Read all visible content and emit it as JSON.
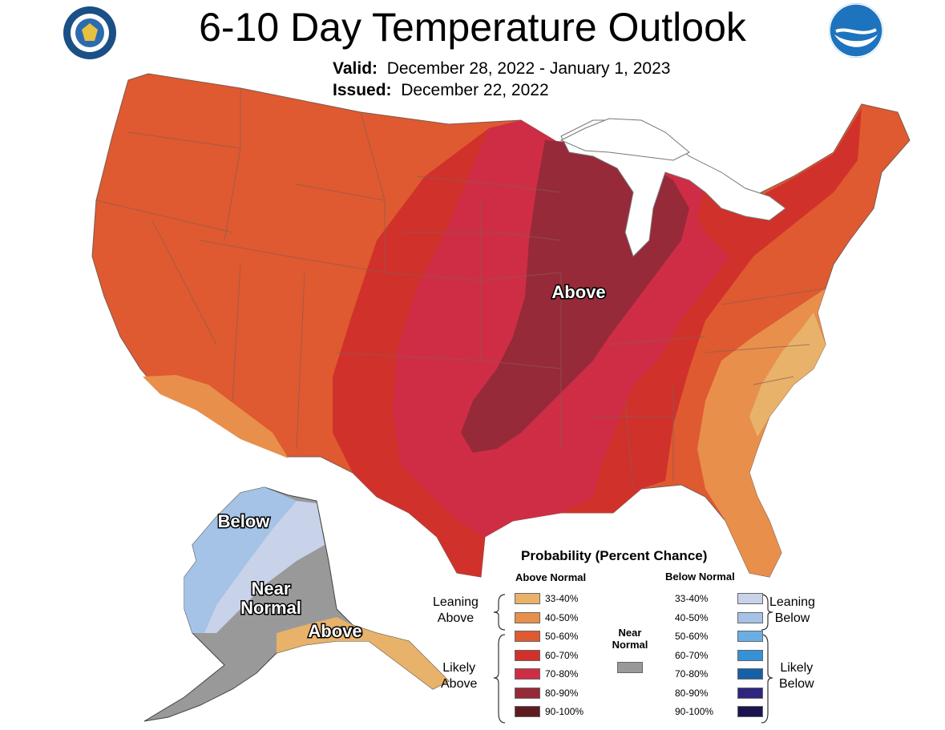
{
  "title": "6-10 Day Temperature Outlook",
  "valid_label": "Valid:",
  "valid_value": "December 28, 2022 - January 1, 2023",
  "issued_label": "Issued:",
  "issued_value": "December 22, 2022",
  "logos": {
    "left": "department-of-commerce-seal",
    "right": "noaa-logo"
  },
  "map_labels": {
    "conus_above": "Above",
    "alaska_below": "Below",
    "alaska_near_line1": "Near",
    "alaska_near_line2": "Normal",
    "alaska_above": "Above"
  },
  "legend": {
    "title": "Probability (Percent Chance)",
    "above_header": "Above Normal",
    "below_header": "Below Normal",
    "near_label_line1": "Near",
    "near_label_line2": "Normal",
    "near_color": "#999999",
    "leaning_above_line1": "Leaning",
    "leaning_above_line2": "Above",
    "likely_above_line1": "Likely",
    "likely_above_line2": "Above",
    "leaning_below_line1": "Leaning",
    "leaning_below_line2": "Below",
    "likely_below_line1": "Likely",
    "likely_below_line2": "Below",
    "above": [
      {
        "label": "33-40%",
        "color": "#e8b26a"
      },
      {
        "label": "40-50%",
        "color": "#e88f4c"
      },
      {
        "label": "50-60%",
        "color": "#df5a30"
      },
      {
        "label": "60-70%",
        "color": "#d1312b"
      },
      {
        "label": "70-80%",
        "color": "#cf2d46"
      },
      {
        "label": "80-90%",
        "color": "#962a39"
      },
      {
        "label": "90-100%",
        "color": "#5e1c21"
      }
    ],
    "below": [
      {
        "label": "33-40%",
        "color": "#c8d3ea"
      },
      {
        "label": "40-50%",
        "color": "#a5c3e6"
      },
      {
        "label": "50-60%",
        "color": "#6aaee3"
      },
      {
        "label": "60-70%",
        "color": "#3592d6"
      },
      {
        "label": "70-80%",
        "color": "#1560a8"
      },
      {
        "label": "80-90%",
        "color": "#2e2580"
      },
      {
        "label": "90-100%",
        "color": "#1a1550"
      }
    ]
  }
}
